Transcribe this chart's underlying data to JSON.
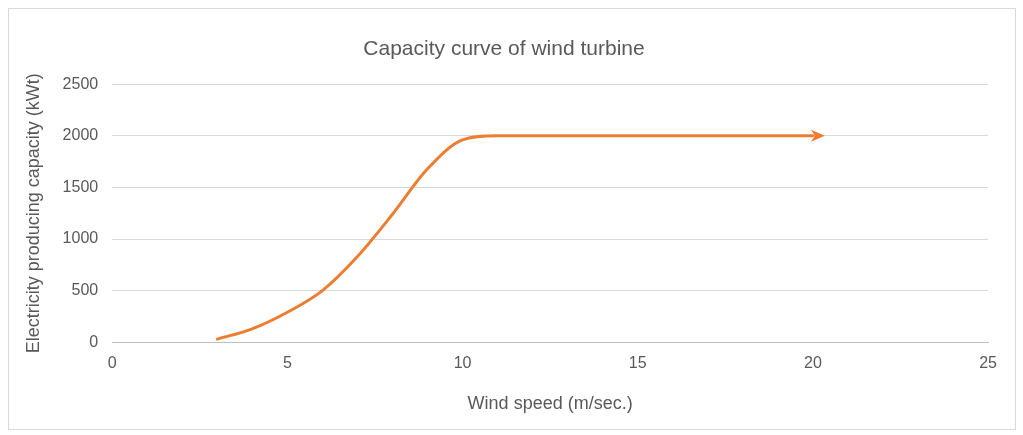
{
  "chart_data": {
    "type": "line",
    "title": "Capacity curve of wind turbine",
    "xlabel": "Wind speed (m/sec.)",
    "ylabel": "Electricity producing capacity (kWt)",
    "x": [
      3,
      4,
      5,
      6,
      7,
      8,
      9,
      10,
      11,
      12,
      20
    ],
    "series": [
      {
        "color": "#ed7d31",
        "values": [
          30,
          130,
          290,
          500,
          830,
          1240,
          1680,
          1960,
          2000,
          2000,
          2000
        ]
      }
    ],
    "xlim": [
      0,
      25
    ],
    "xticks": [
      0,
      5,
      10,
      15,
      20,
      25
    ],
    "ylim": [
      0,
      2500
    ],
    "yticks": [
      0,
      500,
      1000,
      1500,
      2000,
      2500
    ],
    "grid": "y",
    "legend": false,
    "marker": "none",
    "line_style": "solid"
  }
}
